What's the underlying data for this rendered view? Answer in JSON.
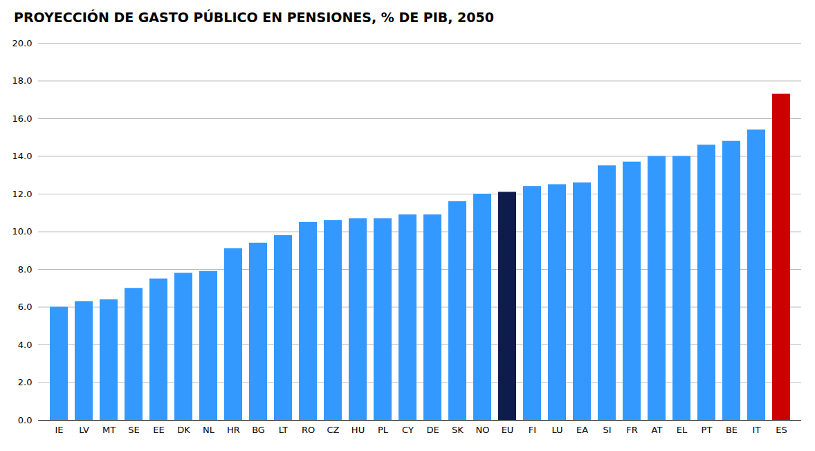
{
  "chart_data": {
    "type": "bar",
    "title": "PROYECCIÓN DE GASTO PÚBLICO EN PENSIONES, % DE PIB, 2050",
    "categories": [
      "IE",
      "LV",
      "MT",
      "SE",
      "EE",
      "DK",
      "NL",
      "HR",
      "BG",
      "LT",
      "RO",
      "CZ",
      "HU",
      "PL",
      "CY",
      "DE",
      "SK",
      "NO",
      "EU",
      "FI",
      "LU",
      "EA",
      "SI",
      "FR",
      "AT",
      "EL",
      "PT",
      "BE",
      "IT",
      "ES"
    ],
    "values": [
      6.0,
      6.3,
      6.4,
      7.0,
      7.5,
      7.8,
      7.9,
      9.1,
      9.4,
      9.8,
      10.5,
      10.6,
      10.7,
      10.7,
      10.9,
      10.9,
      11.6,
      12.0,
      12.1,
      12.4,
      12.5,
      12.6,
      13.5,
      13.7,
      14.0,
      14.0,
      14.6,
      14.8,
      15.4,
      17.3
    ],
    "colors": [
      "#3399FF",
      "#3399FF",
      "#3399FF",
      "#3399FF",
      "#3399FF",
      "#3399FF",
      "#3399FF",
      "#3399FF",
      "#3399FF",
      "#3399FF",
      "#3399FF",
      "#3399FF",
      "#3399FF",
      "#3399FF",
      "#3399FF",
      "#3399FF",
      "#3399FF",
      "#3399FF",
      "#0D1B4F",
      "#3399FF",
      "#3399FF",
      "#3399FF",
      "#3399FF",
      "#3399FF",
      "#3399FF",
      "#3399FF",
      "#3399FF",
      "#3399FF",
      "#3399FF",
      "#CC0000"
    ],
    "ylim": [
      0,
      20.0
    ],
    "yticks": [
      {
        "value": 0,
        "label": "0.0"
      },
      {
        "value": 2,
        "label": "2.0"
      },
      {
        "value": 4,
        "label": "4.0"
      },
      {
        "value": 6,
        "label": "6.0"
      },
      {
        "value": 8,
        "label": "8.0"
      },
      {
        "value": 10,
        "label": "10.0"
      },
      {
        "value": 12,
        "label": "12.0"
      },
      {
        "value": 14,
        "label": "14.0"
      },
      {
        "value": 16,
        "label": "16.0"
      },
      {
        "value": 18,
        "label": "18.0"
      },
      {
        "value": 20,
        "label": "20.0"
      }
    ],
    "grid": true
  }
}
